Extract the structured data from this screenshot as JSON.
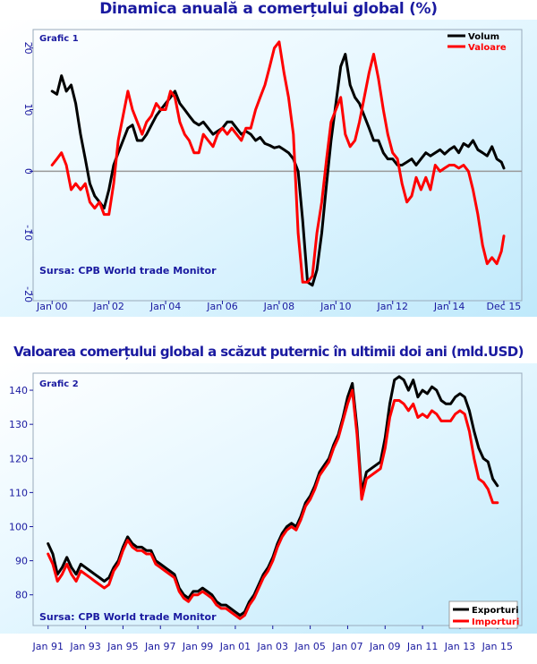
{
  "chart_data": [
    {
      "type": "line",
      "title": "Dinamica anuală a comerțului global (%)",
      "tag": "Grafic 1",
      "source": "Sursa: CPB World trade Monitor",
      "xlabel": "",
      "ylabel": "",
      "ylim": [
        -21,
        23
      ],
      "yticks": [
        -20,
        -10,
        0,
        10,
        20
      ],
      "xticks": [
        "Jan 00",
        "Jan 02",
        "Jan 04",
        "Jan 06",
        "Jan 08",
        "Jan 10",
        "Jan 12",
        "Jan 14",
        "Dec 15"
      ],
      "xtick_pos": [
        2000.0,
        2002.0,
        2004.0,
        2006.0,
        2008.0,
        2010.0,
        2012.0,
        2014.0,
        2015.917
      ],
      "xlim": [
        1999.33,
        2016.55
      ],
      "grid": false,
      "legend": "top-right",
      "series": [
        {
          "name": "Volum",
          "color": "#000000",
          "x": [
            2000.0,
            2000.17,
            2000.33,
            2000.5,
            2000.67,
            2000.83,
            2001.0,
            2001.17,
            2001.33,
            2001.5,
            2001.67,
            2001.83,
            2002.0,
            2002.17,
            2002.33,
            2002.5,
            2002.67,
            2002.83,
            2003.0,
            2003.17,
            2003.33,
            2003.5,
            2003.67,
            2003.83,
            2004.0,
            2004.17,
            2004.33,
            2004.5,
            2004.67,
            2004.83,
            2005.0,
            2005.17,
            2005.33,
            2005.5,
            2005.67,
            2005.83,
            2006.0,
            2006.17,
            2006.33,
            2006.5,
            2006.67,
            2006.83,
            2007.0,
            2007.17,
            2007.33,
            2007.5,
            2007.67,
            2007.83,
            2008.0,
            2008.17,
            2008.33,
            2008.5,
            2008.67,
            2008.83,
            2009.0,
            2009.17,
            2009.33,
            2009.5,
            2009.67,
            2009.83,
            2010.0,
            2010.17,
            2010.33,
            2010.5,
            2010.67,
            2010.83,
            2011.0,
            2011.17,
            2011.33,
            2011.5,
            2011.67,
            2011.83,
            2012.0,
            2012.17,
            2012.33,
            2012.5,
            2012.67,
            2012.83,
            2013.0,
            2013.17,
            2013.33,
            2013.5,
            2013.67,
            2013.83,
            2014.0,
            2014.17,
            2014.33,
            2014.5,
            2014.67,
            2014.83,
            2015.0,
            2015.17,
            2015.33,
            2015.5,
            2015.67,
            2015.83,
            2015.92
          ],
          "y": [
            13,
            12.5,
            15.5,
            13,
            14,
            11,
            6,
            2,
            -2,
            -4,
            -5,
            -6,
            -3,
            1,
            3,
            5,
            7,
            7.5,
            5,
            5,
            6,
            7.5,
            9,
            10,
            11,
            12,
            13,
            11,
            10,
            9,
            8,
            7.5,
            8,
            7,
            6,
            6.5,
            7,
            8,
            8,
            7,
            6,
            6.5,
            6,
            5,
            5.5,
            4.5,
            4.2,
            3.8,
            4,
            3.5,
            3,
            2,
            0,
            -8,
            -18,
            -18.5,
            -16,
            -10,
            -2,
            5,
            11,
            17,
            19,
            14,
            12,
            11,
            9,
            7,
            5,
            5,
            3,
            2,
            2,
            1,
            1,
            1.5,
            2,
            1,
            2,
            3,
            2.5,
            3,
            3.5,
            2.8,
            3.5,
            4,
            3,
            4.5,
            4,
            5,
            3.5,
            3,
            2.5,
            4,
            2,
            1.5,
            0.5
          ]
        },
        {
          "name": "Valoare",
          "color": "#ff0000",
          "x": [
            2000.0,
            2000.17,
            2000.33,
            2000.5,
            2000.67,
            2000.83,
            2001.0,
            2001.17,
            2001.33,
            2001.5,
            2001.67,
            2001.83,
            2002.0,
            2002.17,
            2002.33,
            2002.5,
            2002.67,
            2002.83,
            2003.0,
            2003.17,
            2003.33,
            2003.5,
            2003.67,
            2003.83,
            2004.0,
            2004.17,
            2004.33,
            2004.5,
            2004.67,
            2004.83,
            2005.0,
            2005.17,
            2005.33,
            2005.5,
            2005.67,
            2005.83,
            2006.0,
            2006.17,
            2006.33,
            2006.5,
            2006.67,
            2006.83,
            2007.0,
            2007.17,
            2007.33,
            2007.5,
            2007.67,
            2007.83,
            2008.0,
            2008.17,
            2008.33,
            2008.5,
            2008.67,
            2008.83,
            2009.0,
            2009.17,
            2009.33,
            2009.5,
            2009.67,
            2009.83,
            2010.0,
            2010.17,
            2010.33,
            2010.5,
            2010.67,
            2010.83,
            2011.0,
            2011.17,
            2011.33,
            2011.5,
            2011.67,
            2011.83,
            2012.0,
            2012.17,
            2012.33,
            2012.5,
            2012.67,
            2012.83,
            2013.0,
            2013.17,
            2013.33,
            2013.5,
            2013.67,
            2013.83,
            2014.0,
            2014.17,
            2014.33,
            2014.5,
            2014.67,
            2014.83,
            2015.0,
            2015.17,
            2015.33,
            2015.5,
            2015.67,
            2015.83,
            2015.92
          ],
          "y": [
            1,
            2,
            3,
            1,
            -3,
            -2,
            -3,
            -2,
            -5,
            -6,
            -5,
            -7,
            -7,
            -2,
            5,
            9,
            13,
            10,
            8,
            6,
            8,
            9,
            11,
            10,
            10,
            13,
            12,
            8,
            6,
            5,
            3,
            3,
            6,
            5,
            4,
            6,
            7,
            6,
            7,
            6,
            5,
            7,
            7,
            10,
            12,
            14,
            17,
            20,
            21,
            16,
            12,
            6,
            -10,
            -18,
            -18,
            -17,
            -10,
            -5,
            2,
            8,
            10,
            12,
            6,
            4,
            5,
            8,
            12,
            16,
            19,
            15,
            10,
            6,
            3,
            2,
            -2,
            -5,
            -4,
            -1,
            -3,
            -1,
            -3,
            1,
            0,
            0.5,
            1,
            1,
            0.5,
            1,
            0,
            -3,
            -7,
            -12,
            -15,
            -14,
            -15,
            -13,
            -10.5
          ]
        }
      ]
    },
    {
      "type": "line",
      "title": "Valoarea comerțului global a scăzut puternic în ultimii doi ani (mld.USD)",
      "tag": "Grafic 2",
      "source": "Sursa: CPB World trade Monitor",
      "xlabel": "",
      "ylabel": "",
      "ylim": [
        71,
        145
      ],
      "yticks": [
        80,
        90,
        100,
        110,
        120,
        130,
        140
      ],
      "xticks": [
        "Jan 91",
        "Jan 93",
        "Jan 95",
        "Jan 97",
        "Jan 99",
        "Jan 01",
        "Jan 03",
        "Jan 05",
        "Jan 07",
        "Jan 09",
        "Jan 11",
        "Jan 13",
        "Jan 15"
      ],
      "xtick_pos": [
        1991,
        1993,
        1995,
        1997,
        1999,
        2001,
        2003,
        2005,
        2007,
        2009,
        2011,
        2013,
        2015
      ],
      "xlim": [
        1990.2,
        2016.3
      ],
      "grid": false,
      "legend": "bottom-right",
      "series": [
        {
          "name": "Exporturi",
          "color": "#000000",
          "x": [
            1991.0,
            1991.25,
            1991.5,
            1991.75,
            1992.0,
            1992.25,
            1992.5,
            1992.75,
            1993.0,
            1993.25,
            1993.5,
            1993.75,
            1994.0,
            1994.25,
            1994.5,
            1994.75,
            1995.0,
            1995.25,
            1995.5,
            1995.75,
            1996.0,
            1996.25,
            1996.5,
            1996.75,
            1997.0,
            1997.25,
            1997.5,
            1997.75,
            1998.0,
            1998.25,
            1998.5,
            1998.75,
            1999.0,
            1999.25,
            1999.5,
            1999.75,
            2000.0,
            2000.25,
            2000.5,
            2000.75,
            2001.0,
            2001.25,
            2001.5,
            2001.75,
            2002.0,
            2002.25,
            2002.5,
            2002.75,
            2003.0,
            2003.25,
            2003.5,
            2003.75,
            2004.0,
            2004.25,
            2004.5,
            2004.75,
            2005.0,
            2005.25,
            2005.5,
            2005.75,
            2006.0,
            2006.25,
            2006.5,
            2006.75,
            2007.0,
            2007.25,
            2007.5,
            2007.75,
            2008.0,
            2008.25,
            2008.5,
            2008.75,
            2009.0,
            2009.25,
            2009.5,
            2009.75,
            2010.0,
            2010.25,
            2010.5,
            2010.75,
            2011.0,
            2011.25,
            2011.5,
            2011.75,
            2012.0,
            2012.25,
            2012.5,
            2012.75,
            2013.0,
            2013.25,
            2013.5,
            2013.75,
            2014.0,
            2014.25,
            2014.5,
            2014.75,
            2015.0
          ],
          "y": [
            95,
            92,
            86,
            88,
            91,
            88,
            86,
            89,
            88,
            87,
            86,
            85,
            84,
            85,
            88,
            90,
            94,
            97,
            95,
            94,
            94,
            93,
            93,
            90,
            89,
            88,
            87,
            86,
            82,
            80,
            79,
            81,
            81,
            82,
            81,
            80,
            78,
            77,
            77,
            76,
            75,
            74,
            75,
            78,
            80,
            83,
            86,
            88,
            91,
            95,
            98,
            100,
            101,
            100,
            103,
            107,
            109,
            112,
            116,
            118,
            120,
            124,
            127,
            132,
            138,
            142,
            129,
            110,
            116,
            117,
            118,
            119,
            126,
            136,
            143,
            144,
            143,
            140,
            143,
            138,
            140,
            139,
            141,
            140,
            137,
            136,
            136,
            138,
            139,
            138,
            134,
            128,
            123,
            120,
            119,
            114,
            112
          ]
        },
        {
          "name": "Importuri",
          "color": "#ff0000",
          "x": [
            1991.0,
            1991.25,
            1991.5,
            1991.75,
            1992.0,
            1992.25,
            1992.5,
            1992.75,
            1993.0,
            1993.25,
            1993.5,
            1993.75,
            1994.0,
            1994.25,
            1994.5,
            1994.75,
            1995.0,
            1995.25,
            1995.5,
            1995.75,
            1996.0,
            1996.25,
            1996.5,
            1996.75,
            1997.0,
            1997.25,
            1997.5,
            1997.75,
            1998.0,
            1998.25,
            1998.5,
            1998.75,
            1999.0,
            1999.25,
            1999.5,
            1999.75,
            2000.0,
            2000.25,
            2000.5,
            2000.75,
            2001.0,
            2001.25,
            2001.5,
            2001.75,
            2002.0,
            2002.25,
            2002.5,
            2002.75,
            2003.0,
            2003.25,
            2003.5,
            2003.75,
            2004.0,
            2004.25,
            2004.5,
            2004.75,
            2005.0,
            2005.25,
            2005.5,
            2005.75,
            2006.0,
            2006.25,
            2006.5,
            2006.75,
            2007.0,
            2007.25,
            2007.5,
            2007.75,
            2008.0,
            2008.25,
            2008.5,
            2008.75,
            2009.0,
            2009.25,
            2009.5,
            2009.75,
            2010.0,
            2010.25,
            2010.5,
            2010.75,
            2011.0,
            2011.25,
            2011.5,
            2011.75,
            2012.0,
            2012.25,
            2012.5,
            2012.75,
            2013.0,
            2013.25,
            2013.5,
            2013.75,
            2014.0,
            2014.25,
            2014.5,
            2014.75,
            2015.0
          ],
          "y": [
            92,
            89,
            84,
            86,
            89,
            86,
            84,
            87,
            86,
            85,
            84,
            83,
            82,
            83,
            87,
            89,
            93,
            96,
            94,
            93,
            93,
            92,
            92,
            89,
            88,
            87,
            86,
            85,
            81,
            79,
            78,
            80,
            80,
            81,
            80,
            79,
            77,
            76,
            76,
            75,
            74,
            73,
            74,
            77,
            79,
            82,
            85,
            87,
            90,
            94,
            97,
            99,
            100,
            99,
            102,
            106,
            108,
            111,
            115,
            117,
            119,
            123,
            126,
            131,
            136,
            140,
            127,
            108,
            114,
            115,
            116,
            117,
            123,
            132,
            137,
            137,
            136,
            134,
            136,
            132,
            133,
            132,
            134,
            133,
            131,
            131,
            131,
            133,
            134,
            133,
            128,
            120,
            114,
            113,
            111,
            107,
            107
          ]
        }
      ]
    }
  ]
}
